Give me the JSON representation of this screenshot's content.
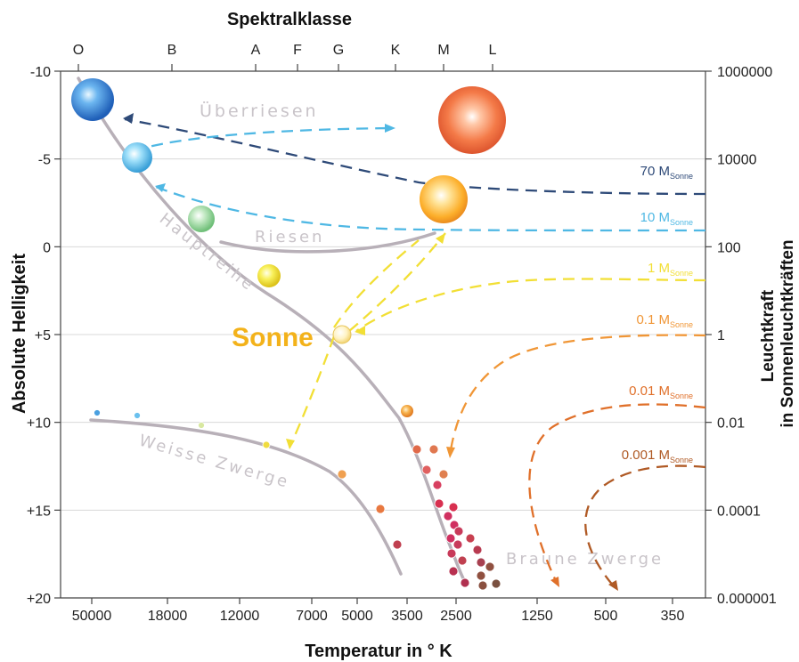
{
  "chart_data": {
    "type": "scatter",
    "title": "Spektralklasse",
    "xlabel": "Temperatur in ° K",
    "ylabel_left": "Absolute Helligkeit",
    "ylabel_right": "Leuchtkraft\nin Sonnenleuchtkräften",
    "spectral_classes": [
      "O",
      "B",
      "A",
      "F",
      "G",
      "K",
      "M",
      "L"
    ],
    "x_ticks": [
      "50000",
      "18000",
      "12000",
      "7000",
      "5000",
      "3500",
      "2500",
      "1250",
      "500",
      "350"
    ],
    "y_left_ticks": [
      "-10",
      "-5",
      "0",
      "+5",
      "+10",
      "+15",
      "+20"
    ],
    "y_left_range": [
      -10,
      20
    ],
    "y_right_ticks": [
      "1000000",
      "10000",
      "100",
      "1",
      "0.01",
      "0.0001",
      "0.000001"
    ],
    "grid": true,
    "region_labels": [
      "Überriesen",
      "Riesen",
      "Hauptreihe",
      "Weisse Zwerge",
      "Braune Zwerge"
    ],
    "sun_label": "Sonne",
    "mass_track_unit": "Sonne",
    "mass_tracks": [
      {
        "label": "70 M",
        "color": "#2e4a78",
        "end_magnitude": -7.0
      },
      {
        "label": "10 M",
        "color": "#4fb8e4",
        "end_magnitude": -1.0
      },
      {
        "label": "1 M",
        "color": "#f2df35",
        "end_magnitude": 2.0
      },
      {
        "label": "0.1 M",
        "color": "#f09636",
        "end_magnitude": 5.0
      },
      {
        "label": "0.01 M",
        "color": "#e0702a",
        "end_magnitude": 9.0
      },
      {
        "label": "0.001 M",
        "color": "#b05a25",
        "end_magnitude": 12.5
      }
    ],
    "stars": [
      {
        "name": "blue-supergiant",
        "class": "O",
        "magnitude": -8.3,
        "color": "#3a86d6"
      },
      {
        "name": "blue-main-star",
        "class": "B",
        "magnitude": -5.1,
        "color": "#7fd0f2"
      },
      {
        "name": "green-main-star",
        "class": "A",
        "magnitude": -1.5,
        "color": "#9fd9a0"
      },
      {
        "name": "yellow-main-star",
        "class": "F",
        "magnitude": 1.7,
        "color": "#f4ea4a"
      },
      {
        "name": "sun",
        "class": "G",
        "magnitude": 5.0,
        "color": "#fff4c2"
      },
      {
        "name": "orange-main-star",
        "class": "K",
        "magnitude": 9.2,
        "color": "#f0a040"
      },
      {
        "name": "red-supergiant",
        "class": "M",
        "magnitude": -7.5,
        "color": "#f07040"
      },
      {
        "name": "orange-giant",
        "class": "M",
        "magnitude": -2.7,
        "color": "#fbb030"
      }
    ]
  }
}
